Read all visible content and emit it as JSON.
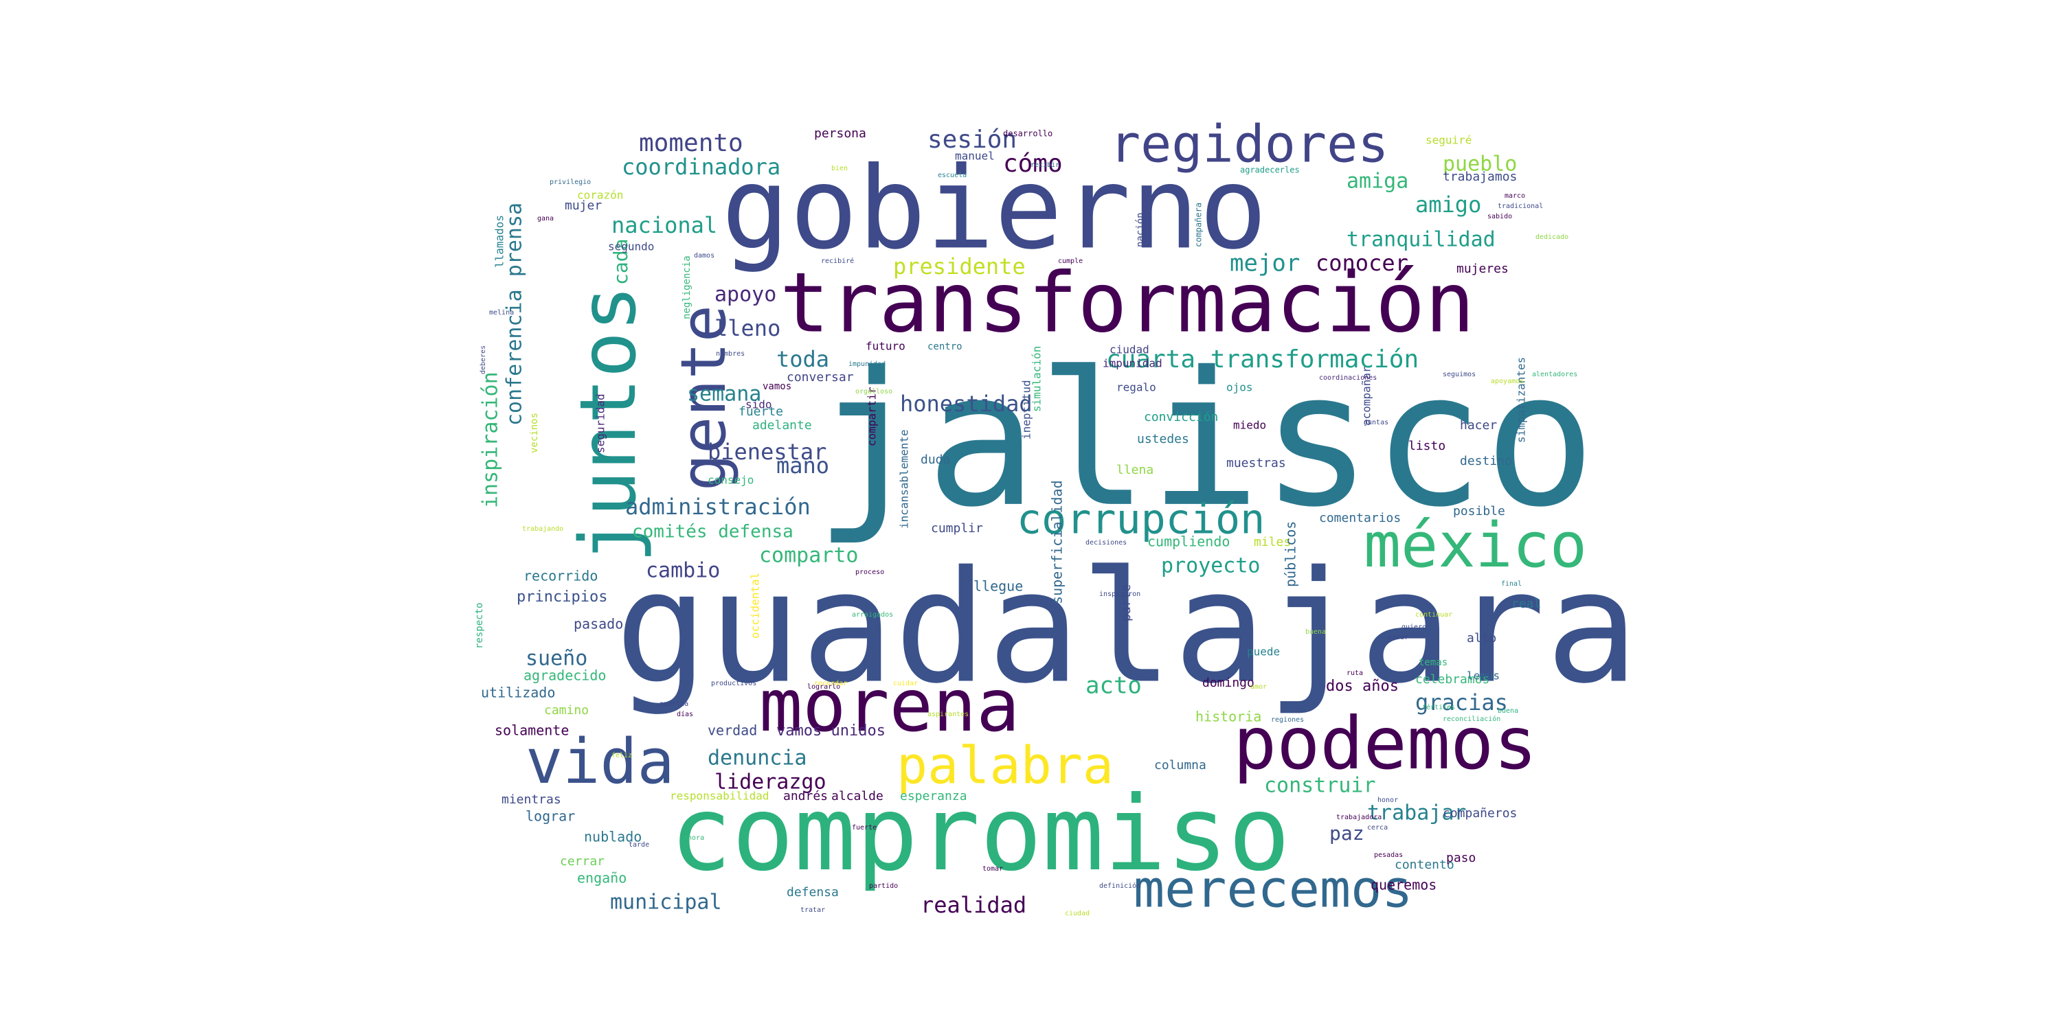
{
  "background": "#ffffff",
  "palette": {
    "dark_purple": "#440154",
    "purple": "#482878",
    "indigo": "#3e4a89",
    "blue": "#31688e",
    "teal": "#26828e",
    "green_teal": "#1f9e89",
    "green": "#35b779",
    "light_green": "#6ece58",
    "lime": "#b5de2b",
    "yellow": "#fde725"
  },
  "words": [
    {
      "text": "jalisco",
      "color": "#2a788e"
    },
    {
      "text": "guadalajara",
      "color": "#3b528b"
    },
    {
      "text": "gobierno",
      "color": "#3e4a89"
    },
    {
      "text": "compromiso",
      "color": "#2db27d"
    },
    {
      "text": "transformación",
      "color": "#440154"
    },
    {
      "text": "podemos",
      "color": "#440154"
    },
    {
      "text": "juntos",
      "color": "#21918c"
    },
    {
      "text": "morena",
      "color": "#440154"
    },
    {
      "text": "gente",
      "color": "#3e4a89"
    },
    {
      "text": "vida",
      "color": "#3b528b"
    },
    {
      "text": "méxico",
      "color": "#35b779"
    },
    {
      "text": "regidores",
      "color": "#414487"
    },
    {
      "text": "palabra",
      "color": "#fde725"
    },
    {
      "text": "merecemos",
      "color": "#31688e"
    },
    {
      "text": "corrupción",
      "color": "#21918c"
    },
    {
      "text": "cuarta transformación",
      "color": "#1f9e89"
    },
    {
      "text": "momento",
      "color": "#414487"
    },
    {
      "text": "sesión",
      "color": "#3e4a89"
    },
    {
      "text": "cómo",
      "color": "#440154"
    },
    {
      "text": "coordinadora",
      "color": "#21918c"
    },
    {
      "text": "nacional",
      "color": "#1f9e89"
    },
    {
      "text": "presidente",
      "color": "#c2df23"
    },
    {
      "text": "amiga",
      "color": "#35b779"
    },
    {
      "text": "pueblo",
      "color": "#8fd744"
    },
    {
      "text": "amigo",
      "color": "#1f9e89"
    },
    {
      "text": "tranquilidad",
      "color": "#1f9e89"
    },
    {
      "text": "mejor",
      "color": "#21918c"
    },
    {
      "text": "conocer",
      "color": "#440154"
    },
    {
      "text": "apoyo",
      "color": "#482878"
    },
    {
      "text": "cada",
      "color": "#2db27d"
    },
    {
      "text": "lleno",
      "color": "#3e4a89"
    },
    {
      "text": "toda",
      "color": "#2a788e"
    },
    {
      "text": "honestidad",
      "color": "#3b528b"
    },
    {
      "text": "semana",
      "color": "#26828e"
    },
    {
      "text": "bienestar",
      "color": "#3e4a89"
    },
    {
      "text": "mano",
      "color": "#3b528b"
    },
    {
      "text": "administración",
      "color": "#31688e"
    },
    {
      "text": "comités defensa",
      "color": "#35b779"
    },
    {
      "text": "cambio",
      "color": "#414487"
    },
    {
      "text": "comparto",
      "color": "#35b779"
    },
    {
      "text": "proyecto",
      "color": "#1f9e89"
    },
    {
      "text": "conferencia prensa",
      "color": "#2a788e"
    },
    {
      "text": "inspiración",
      "color": "#35b779"
    },
    {
      "text": "acto",
      "color": "#2db27d"
    },
    {
      "text": "gracias",
      "color": "#31688e"
    },
    {
      "text": "denuncia",
      "color": "#2a788e"
    },
    {
      "text": "liderazgo",
      "color": "#440154"
    },
    {
      "text": "construir",
      "color": "#35b779"
    },
    {
      "text": "trabajar",
      "color": "#26828e"
    },
    {
      "text": "paz",
      "color": "#3e4a89"
    },
    {
      "text": "municipal",
      "color": "#31688e"
    },
    {
      "text": "realidad",
      "color": "#440154"
    },
    {
      "text": "sueño",
      "color": "#31688e"
    },
    {
      "text": "recorrido",
      "color": "#2a788e"
    },
    {
      "text": "principios",
      "color": "#3b528b"
    },
    {
      "text": "pasado",
      "color": "#3e4a89"
    },
    {
      "text": "agradecido",
      "color": "#35b779"
    },
    {
      "text": "utilizado",
      "color": "#31688e"
    },
    {
      "text": "camino",
      "color": "#8fd744"
    },
    {
      "text": "solamente",
      "color": "#440154"
    },
    {
      "text": "mientras",
      "color": "#3e4a89"
    },
    {
      "text": "lograr",
      "color": "#31688e"
    },
    {
      "text": "nublado",
      "color": "#2a788e"
    },
    {
      "text": "cerrar",
      "color": "#6ece58"
    },
    {
      "text": "engaño",
      "color": "#35b779"
    },
    {
      "text": "defensa",
      "color": "#2a788e"
    },
    {
      "text": "verdad",
      "color": "#3e4a89"
    },
    {
      "text": "vamos unidos",
      "color": "#482878"
    },
    {
      "text": "andrés",
      "color": "#440154"
    },
    {
      "text": "alcalde",
      "color": "#440154"
    },
    {
      "text": "esperanza",
      "color": "#35b779"
    },
    {
      "text": "responsabilidad",
      "color": "#b5de2b"
    },
    {
      "text": "columna",
      "color": "#31688e"
    },
    {
      "text": "historia",
      "color": "#8fd744"
    },
    {
      "text": "dos años",
      "color": "#440154"
    },
    {
      "text": "celebramos",
      "color": "#35b779"
    },
    {
      "text": "compañeros",
      "color": "#3e4a89"
    },
    {
      "text": "contento",
      "color": "#2a788e"
    },
    {
      "text": "queremos",
      "color": "#440154"
    },
    {
      "text": "paso",
      "color": "#440154"
    },
    {
      "text": "domingo",
      "color": "#440154"
    },
    {
      "text": "puede",
      "color": "#26828e"
    },
    {
      "text": "llegue",
      "color": "#31688e"
    },
    {
      "text": "cumplir",
      "color": "#3e4a89"
    },
    {
      "text": "cumpliendo",
      "color": "#35b779"
    },
    {
      "text": "miles",
      "color": "#b5de2b"
    },
    {
      "text": "parte",
      "color": "#3e4a89"
    },
    {
      "text": "públicos",
      "color": "#31688e"
    },
    {
      "text": "superficialidad",
      "color": "#31688e"
    },
    {
      "text": "incansablemente",
      "color": "#31688e"
    },
    {
      "text": "occidental",
      "color": "#fde725"
    },
    {
      "text": "listo",
      "color": "#440154"
    },
    {
      "text": "posible",
      "color": "#31688e"
    },
    {
      "text": "comentarios",
      "color": "#31688e"
    },
    {
      "text": "muestras",
      "color": "#3e4a89"
    },
    {
      "text": "ustedes",
      "color": "#2a788e"
    },
    {
      "text": "llena",
      "color": "#8fd744"
    },
    {
      "text": "miedo",
      "color": "#440154"
    },
    {
      "text": "convicción",
      "color": "#1f9e89"
    },
    {
      "text": "regalo",
      "color": "#3e4a89"
    },
    {
      "text": "ojos",
      "color": "#21918c"
    },
    {
      "text": "impunidad",
      "color": "#482878"
    },
    {
      "text": "ciudad",
      "color": "#414487"
    },
    {
      "text": "ineptitud",
      "color": "#3b528b"
    },
    {
      "text": "simulación",
      "color": "#35b779"
    },
    {
      "text": "duda",
      "color": "#31688e"
    },
    {
      "text": "compartir",
      "color": "#440154"
    },
    {
      "text": "fuerte",
      "color": "#26828e"
    },
    {
      "text": "sido",
      "color": "#482878"
    },
    {
      "text": "adelante",
      "color": "#2db27d"
    },
    {
      "text": "conversar",
      "color": "#414487"
    },
    {
      "text": "futuro",
      "color": "#440154"
    },
    {
      "text": "centro",
      "color": "#2a788e"
    },
    {
      "text": "vamos",
      "color": "#440154"
    },
    {
      "text": "consejo",
      "color": "#35b779"
    },
    {
      "text": "seguridad",
      "color": "#482878"
    },
    {
      "text": "vecinos",
      "color": "#b5de2b"
    },
    {
      "text": "llamados",
      "color": "#26828e"
    },
    {
      "text": "segundo",
      "color": "#3e4a89"
    },
    {
      "text": "corazón",
      "color": "#b5de2b"
    },
    {
      "text": "mujer",
      "color": "#3e4a89"
    },
    {
      "text": "persona",
      "color": "#440154"
    },
    {
      "text": "manuel",
      "color": "#3e4a89"
    },
    {
      "text": "trabajamos",
      "color": "#3e4a89"
    },
    {
      "text": "seguiré",
      "color": "#b5de2b"
    },
    {
      "text": "mujeres",
      "color": "#440154"
    },
    {
      "text": "hacer",
      "color": "#3e4a89"
    },
    {
      "text": "destino",
      "color": "#31688e"
    },
    {
      "text": "simpatizantes",
      "color": "#31688e"
    },
    {
      "text": "acompañar",
      "color": "#3e4a89"
    },
    {
      "text": "lemus",
      "color": "#31688e"
    },
    {
      "text": "alto",
      "color": "#3e4a89"
    },
    {
      "text": "real",
      "color": "#2a788e"
    },
    {
      "text": "temas",
      "color": "#35b779"
    },
    {
      "text": "respecto",
      "color": "#2db27d"
    },
    {
      "text": "nación",
      "color": "#3e4a89"
    },
    {
      "text": "negligencia",
      "color": "#35b779"
    },
    {
      "text": "compañera",
      "color": "#2a788e"
    },
    {
      "text": "desarrollo",
      "color": "#440154"
    },
    {
      "text": "recibir",
      "color": "#31688e"
    },
    {
      "text": "agradecerles",
      "color": "#1f9e89"
    },
    {
      "text": "marco",
      "color": "#440154"
    },
    {
      "text": "tradicional",
      "color": "#3e4a89"
    },
    {
      "text": "sabido",
      "color": "#440154"
    },
    {
      "text": "dedicado",
      "color": "#8fd744"
    },
    {
      "text": "bien",
      "color": "#b5de2b"
    },
    {
      "text": "escuela",
      "color": "#26828e"
    },
    {
      "text": "privilegio",
      "color": "#31688e"
    },
    {
      "text": "cumple",
      "color": "#440154"
    },
    {
      "text": "recibiré",
      "color": "#3e4a89"
    },
    {
      "text": "damos",
      "color": "#3e4a89"
    },
    {
      "text": "gana",
      "color": "#440154"
    },
    {
      "text": "melina",
      "color": "#3e4a89"
    },
    {
      "text": "deberes",
      "color": "#3e4a89"
    },
    {
      "text": "nombres",
      "color": "#3e4a89"
    },
    {
      "text": "orgulloso",
      "color": "#8fd744"
    },
    {
      "text": "impunidad",
      "color": "#2a788e"
    },
    {
      "text": "coordinaciones",
      "color": "#482878"
    },
    {
      "text": "seguimos",
      "color": "#3e4a89"
    },
    {
      "text": "alentadores",
      "color": "#35b779"
    },
    {
      "text": "apoyamos",
      "color": "#b5de2b"
    },
    {
      "text": "juntas",
      "color": "#3e4a89"
    },
    {
      "text": "decisiones",
      "color": "#3e4a89"
    },
    {
      "text": "proceso",
      "color": "#440154"
    },
    {
      "text": "final",
      "color": "#26828e"
    },
    {
      "text": "continuar",
      "color": "#b5de2b"
    },
    {
      "text": "quiero",
      "color": "#3e4a89"
    },
    {
      "text": "mover",
      "color": "#3e4a89"
    },
    {
      "text": "buena",
      "color": "#8fd744"
    },
    {
      "text": "ruta",
      "color": "#440154"
    },
    {
      "text": "regiones",
      "color": "#31688e"
    },
    {
      "text": "fértiles",
      "color": "#35b779"
    },
    {
      "text": "reconciliación",
      "color": "#35b779"
    },
    {
      "text": "buena",
      "color": "#2db27d"
    },
    {
      "text": "honor",
      "color": "#3e4a89"
    },
    {
      "text": "cerca",
      "color": "#3e4a89"
    },
    {
      "text": "trabajadora",
      "color": "#440154"
    },
    {
      "text": "pesadas",
      "color": "#440154"
    },
    {
      "text": "definición",
      "color": "#3e4a89"
    },
    {
      "text": "partido",
      "color": "#440154"
    },
    {
      "text": "tomar",
      "color": "#440154"
    },
    {
      "text": "tratar",
      "color": "#3e4a89"
    },
    {
      "text": "ciudad",
      "color": "#b5de2b"
    },
    {
      "text": "tarde",
      "color": "#3e4a89"
    },
    {
      "text": "ahora",
      "color": "#35b779"
    },
    {
      "text": "fuerte",
      "color": "#440154"
    },
    {
      "text": "lograrlo",
      "color": "#440154"
    },
    {
      "text": "productivos",
      "color": "#3e4a89"
    },
    {
      "text": "días",
      "color": "#440154"
    },
    {
      "text": "américa",
      "color": "#3e4a89"
    },
    {
      "text": "feliz",
      "color": "#b5de2b"
    },
    {
      "text": "aspirantes",
      "color": "#b5de2b"
    },
    {
      "text": "inspiraron",
      "color": "#3e4a89"
    },
    {
      "text": "trabajando",
      "color": "#b5de2b"
    },
    {
      "text": "cuidar",
      "color": "#fde725"
    },
    {
      "text": "arraigados",
      "color": "#35b779"
    },
    {
      "text": "recordar",
      "color": "#fde725"
    },
    {
      "text": "amor",
      "color": "#b5de2b"
    }
  ]
}
